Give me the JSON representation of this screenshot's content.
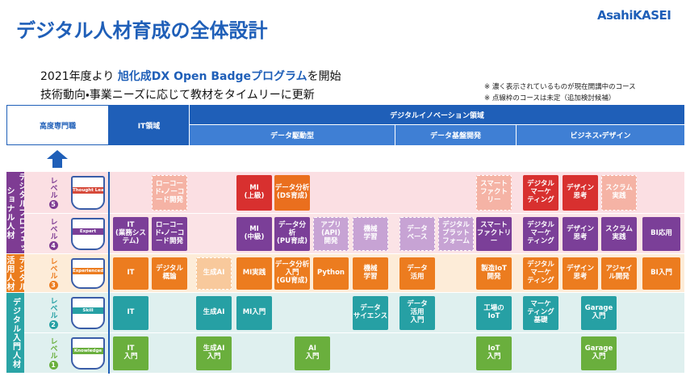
{
  "header": {
    "title": "デジタル人材育成の全体設計",
    "logo": "AsahiKASEI"
  },
  "intro": {
    "lead_prefix": "2021年度より ",
    "lead_highlight": "旭化成DX Open Badgeプログラム",
    "lead_suffix": "を開始",
    "line2": "技術動向・事業ニーズに応じて教材をタイムリーに更新"
  },
  "notes": [
    "※ 濃く表示されているものが現在開講中のコース",
    "※ 点線枠のコースは未定（追加検討候補）"
  ],
  "table_header": {
    "expert": "高度専門職",
    "it": "IT領域",
    "innovation": "デジタルイノベーション領域",
    "sub": [
      "データ駆動型",
      "データ基盤開発",
      "ビジネス・デザイン"
    ]
  },
  "categories": [
    "デジタルプロフェッショナル人材",
    "デジタル活用人材",
    "デジタル入門人材"
  ],
  "levels": [
    {
      "label": "レベル",
      "number": "5",
      "badge": "Thought Leader",
      "courses": [
        "ローコード・ノーコード開発",
        "MI\n(上級)",
        "データ分析\n(DS育成)",
        "スマート\nファクトリー",
        "デジタル\nマーケ\nティング",
        "デザイン\n思考",
        "スクラム\n実践"
      ]
    },
    {
      "label": "レベル",
      "number": "4",
      "badge": "Expert",
      "courses": [
        "IT\n(業務シス\nテム)",
        "ローコー\nド・ノーコ\nード開発",
        "MI\n(中級)",
        "データ分\n析\n(PU育成)",
        "アプリ\n(API)\n開発",
        "機械\n学習",
        "データ\nベース",
        "デジタル\nプラット\nフォーム",
        "スマート\nファクトリ\nー",
        "デジタル\nマーケ\nティング",
        "デザイン\n思考",
        "スクラム\n実践",
        "BI応用"
      ]
    },
    {
      "label": "レベル",
      "number": "3",
      "badge": "Experienced",
      "courses": [
        "IT",
        "デジタル\n概論",
        "生成AI",
        "MI実践",
        "データ分析\n入門\n(GU育成)",
        "Python",
        "機械\n学習",
        "データ\n活用",
        "製造IoT\n開発",
        "デジタル\nマーケ\nティング",
        "デザイン\n思考",
        "アジャイ\nル開発",
        "BI入門"
      ]
    },
    {
      "label": "レベル",
      "number": "2",
      "badge": "Skill",
      "courses": [
        "IT",
        "生成AI",
        "MI入門",
        "データ\nサイエンス",
        "データ\n活用\n入門",
        "工場の\nIoT",
        "マーケ\nティング\n基礎",
        "Garage\n入門"
      ]
    },
    {
      "label": "レベル",
      "number": "1",
      "badge": "Knowledge",
      "courses": [
        "IT\n入門",
        "生成AI\n入門",
        "AI\n入門",
        "IoT\n入門",
        "Garage\n入門"
      ]
    }
  ]
}
